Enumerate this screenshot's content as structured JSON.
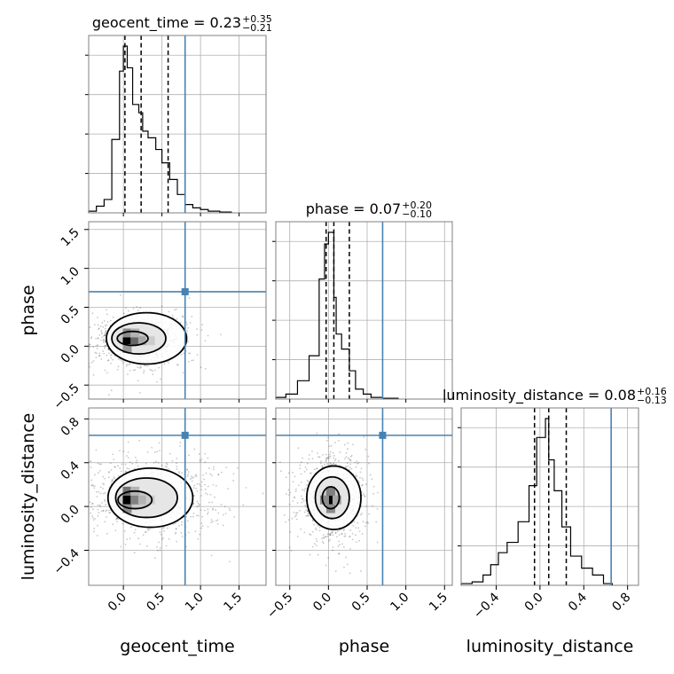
{
  "chart_data": {
    "type": "corner",
    "parameters": [
      "geocent_time",
      "phase",
      "luminosity_distance"
    ],
    "truths": [
      0.8,
      0.7,
      0.65
    ],
    "truth_color": "#4682b4",
    "grid": true,
    "titles": [
      {
        "name": "geocent_time",
        "median": "0.23",
        "plus": "+0.35",
        "minus": "−0.21"
      },
      {
        "name": "phase",
        "median": "0.07",
        "plus": "+0.20",
        "minus": "−0.10"
      },
      {
        "name": "luminosity_distance",
        "median": "0.08",
        "plus": "+0.16",
        "minus": "−0.13"
      }
    ],
    "axes": [
      {
        "name": "geocent_time",
        "range": [
          -0.45,
          1.85
        ],
        "ticks": [
          0.0,
          0.5,
          1.0,
          1.5
        ],
        "tick_labels": [
          "0.0",
          "0.5",
          "1.0",
          "1.5"
        ]
      },
      {
        "name": "phase",
        "range": [
          -0.68,
          1.6
        ],
        "ticks": [
          -0.5,
          0.0,
          0.5,
          1.0,
          1.5
        ],
        "tick_labels": [
          "−0.5",
          "0.0",
          "0.5",
          "1.0",
          "1.5"
        ]
      },
      {
        "name": "luminosity_distance",
        "range": [
          -0.72,
          0.9
        ],
        "ticks": [
          -0.4,
          0.0,
          0.4,
          0.8
        ],
        "tick_labels": [
          "−0.4",
          "0.0",
          "0.4",
          "0.8"
        ]
      }
    ],
    "histograms": [
      {
        "param": "geocent_time",
        "bin_edges": [
          -0.45,
          -0.35,
          -0.25,
          -0.15,
          -0.05,
          0.0,
          0.05,
          0.12,
          0.2,
          0.25,
          0.32,
          0.42,
          0.5,
          0.6,
          0.7,
          0.8,
          0.9,
          1.0,
          1.1,
          1.25,
          1.4
        ],
        "counts": [
          0.01,
          0.04,
          0.08,
          0.44,
          0.85,
          1.0,
          0.87,
          0.65,
          0.6,
          0.49,
          0.45,
          0.38,
          0.3,
          0.2,
          0.11,
          0.05,
          0.03,
          0.02,
          0.01,
          0.005
        ],
        "quantiles": [
          0.02,
          0.23,
          0.58
        ]
      },
      {
        "param": "phase",
        "bin_edges": [
          -0.68,
          -0.55,
          -0.4,
          -0.25,
          -0.12,
          -0.05,
          0.0,
          0.07,
          0.1,
          0.17,
          0.27,
          0.35,
          0.45,
          0.55,
          0.7,
          0.9
        ],
        "counts": [
          0.01,
          0.03,
          0.11,
          0.26,
          0.72,
          0.93,
          1.0,
          0.61,
          0.39,
          0.3,
          0.17,
          0.06,
          0.03,
          0.01,
          0.005
        ],
        "quantiles": [
          -0.03,
          0.07,
          0.27
        ]
      },
      {
        "param": "luminosity_distance",
        "bin_edges": [
          -0.72,
          -0.62,
          -0.52,
          -0.45,
          -0.38,
          -0.3,
          -0.2,
          -0.1,
          -0.03,
          0.05,
          0.08,
          0.13,
          0.2,
          0.28,
          0.38,
          0.48,
          0.58,
          0.66
        ],
        "counts": [
          0.01,
          0.02,
          0.06,
          0.12,
          0.19,
          0.25,
          0.37,
          0.58,
          0.86,
          0.97,
          0.73,
          0.55,
          0.34,
          0.17,
          0.1,
          0.06,
          0.01
        ],
        "quantiles": [
          -0.05,
          0.08,
          0.24
        ]
      }
    ],
    "density_panels": [
      {
        "x": "geocent_time",
        "y": "phase",
        "center": [
          0.1,
          0.08
        ],
        "spread": [
          0.2,
          0.12
        ],
        "contours": [
          {
            "cx": 0.3,
            "cy": 0.1,
            "rx": 0.52,
            "ry": 0.33
          },
          {
            "cx": 0.2,
            "cy": 0.1,
            "rx": 0.35,
            "ry": 0.2
          },
          {
            "cx": 0.12,
            "cy": 0.1,
            "rx": 0.2,
            "ry": 0.09
          }
        ],
        "peak_cells": [
          {
            "x": 0.05,
            "y": 0.07,
            "v": 1.0
          },
          {
            "x": 0.15,
            "y": 0.07,
            "v": 0.6
          },
          {
            "x": 0.05,
            "y": 0.17,
            "v": 0.45
          },
          {
            "x": 0.25,
            "y": 0.07,
            "v": 0.35
          },
          {
            "x": 0.15,
            "y": 0.17,
            "v": 0.3
          },
          {
            "x": 0.05,
            "y": -0.03,
            "v": 0.4
          },
          {
            "x": 0.35,
            "y": 0.07,
            "v": 0.2
          }
        ]
      },
      {
        "x": "geocent_time",
        "y": "luminosity_distance",
        "center": [
          0.2,
          0.08
        ],
        "spread": [
          0.3,
          0.13
        ],
        "contours": [
          {
            "cx": 0.35,
            "cy": 0.08,
            "rx": 0.55,
            "ry": 0.27
          },
          {
            "cx": 0.3,
            "cy": 0.08,
            "rx": 0.4,
            "ry": 0.18
          },
          {
            "cx": 0.15,
            "cy": 0.06,
            "rx": 0.22,
            "ry": 0.08
          }
        ],
        "peak_cells": [
          {
            "x": 0.05,
            "y": 0.06,
            "v": 1.0
          },
          {
            "x": 0.05,
            "y": 0.14,
            "v": 0.55
          },
          {
            "x": 0.15,
            "y": 0.06,
            "v": 0.5
          },
          {
            "x": 0.05,
            "y": -0.02,
            "v": 0.45
          },
          {
            "x": 0.25,
            "y": 0.06,
            "v": 0.3
          },
          {
            "x": 0.15,
            "y": 0.14,
            "v": 0.3
          },
          {
            "x": 0.35,
            "y": 0.06,
            "v": 0.2
          }
        ]
      },
      {
        "x": "phase",
        "y": "luminosity_distance",
        "center": [
          0.05,
          0.08
        ],
        "spread": [
          0.14,
          0.14
        ],
        "contours": [
          {
            "cx": 0.07,
            "cy": 0.08,
            "rx": 0.35,
            "ry": 0.29
          },
          {
            "cx": 0.05,
            "cy": 0.08,
            "rx": 0.22,
            "ry": 0.19
          },
          {
            "cx": 0.03,
            "cy": 0.08,
            "rx": 0.11,
            "ry": 0.1
          }
        ],
        "peak_cells": [
          {
            "x": 0.03,
            "y": 0.06,
            "v": 1.0
          },
          {
            "x": 0.03,
            "y": 0.14,
            "v": 0.5
          },
          {
            "x": -0.05,
            "y": 0.06,
            "v": 0.45
          },
          {
            "x": 0.03,
            "y": -0.02,
            "v": 0.45
          },
          {
            "x": 0.11,
            "y": 0.06,
            "v": 0.35
          }
        ]
      }
    ]
  }
}
